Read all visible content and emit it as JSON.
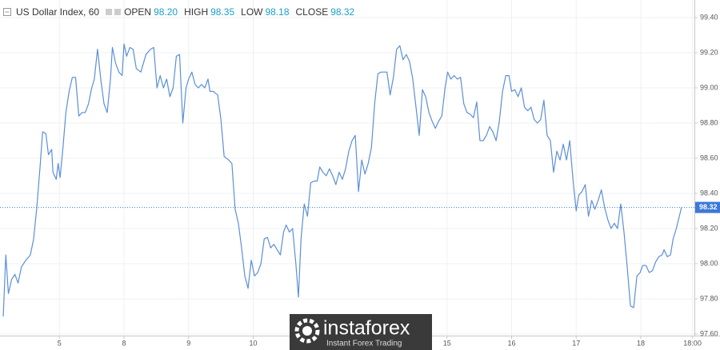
{
  "header": {
    "symbol": "US Dollar Index, 60",
    "fields": [
      {
        "label": "OPEN",
        "value": "98.20"
      },
      {
        "label": "HIGH",
        "value": "98.35"
      },
      {
        "label": "LOW",
        "value": "98.18"
      },
      {
        "label": "CLOSE",
        "value": "98.32"
      }
    ]
  },
  "chart_data": {
    "type": "line",
    "color": "#5b8fd8",
    "grid": true,
    "x": [
      -8.7,
      -8.3,
      -7.9,
      -7.4,
      -6.9,
      -6.4,
      -5.9,
      -5.2,
      -4.5,
      -4.0,
      -3.5,
      -3.0,
      -2.6,
      -2.1,
      -1.7,
      -1.2,
      -1.0,
      -0.5,
      -0.2,
      0.1,
      0.5,
      1.0,
      1.5,
      2.0,
      2.5,
      3.0,
      3.5,
      4.0,
      4.5,
      5.0,
      5.4,
      5.9,
      6.4,
      6.9,
      7.4,
      7.9,
      8.2,
      8.7,
      9.2,
      9.7,
      10.0,
      10.4,
      10.9,
      11.4,
      11.9,
      12.6,
      13.4,
      14.1,
      14.6,
      15.1,
      15.6,
      16.1,
      16.6,
      17.1,
      17.6,
      18.1,
      18.6,
      19.1,
      19.6,
      20.0,
      20.5,
      21.0,
      21.5,
      22.0,
      22.5,
      23.0,
      23.3,
      23.8,
      24.5,
      25.0,
      25.5,
      26.2,
      26.7,
      27.2,
      27.7,
      28.2,
      28.7,
      29.2,
      29.7,
      30.2,
      30.7,
      31.2,
      31.7,
      32.2,
      32.7,
      33.2,
      33.7,
      34.2,
      34.7,
      35.1,
      35.6,
      36.1,
      36.6,
      37.0,
      37.4,
      37.9,
      38.4,
      38.9,
      39.4,
      39.9,
      40.3,
      40.8,
      41.3,
      41.8,
      42.3,
      42.8,
      43.3,
      43.8,
      44.3,
      44.8,
      45.3,
      45.8,
      46.3,
      46.8,
      47.3,
      47.8,
      48.3,
      48.8,
      49.3,
      49.8,
      50.2,
      50.7,
      51.2,
      51.7,
      52.2,
      52.7,
      53.2,
      53.7,
      54.2,
      54.7,
      55.2,
      55.7,
      56.2,
      56.7,
      57.2,
      57.7,
      58.2,
      58.7,
      59.2,
      59.7,
      60.1,
      60.6,
      61.1,
      61.6,
      62.1,
      62.6,
      63.1,
      63.6,
      64.1,
      64.6,
      65.1,
      65.6,
      66.1,
      66.6,
      67.1,
      67.6,
      68.1,
      68.6,
      69.1,
      69.6,
      70.0,
      70.5,
      71.0,
      71.5,
      72.0,
      72.5,
      73.0,
      73.5,
      74.0,
      74.5,
      75.0,
      75.5,
      76.0,
      76.5,
      77.0,
      77.5,
      78.0,
      78.5,
      79.0,
      79.5,
      80.0,
      80.4,
      80.9,
      81.4,
      81.9,
      82.4,
      82.9,
      83.4,
      83.9,
      84.4,
      84.9,
      85.4,
      85.9,
      86.4,
      86.9,
      87.4,
      87.9,
      88.4,
      88.9,
      89.4,
      89.9,
      90.3,
      90.8,
      91.3,
      91.8,
      92.3,
      92.8,
      93.3,
      93.6,
      94.1,
      94.6,
      95.0,
      95.5,
      96.3
    ],
    "values": [
      97.7,
      98.05,
      97.83,
      97.91,
      97.94,
      97.89,
      97.98,
      98.02,
      98.05,
      98.14,
      98.32,
      98.55,
      98.75,
      98.74,
      98.62,
      98.65,
      98.52,
      98.48,
      98.57,
      98.49,
      98.64,
      98.86,
      98.98,
      99.06,
      99.06,
      98.84,
      98.86,
      98.86,
      98.91,
      99.0,
      99.05,
      99.22,
      99.05,
      98.91,
      98.86,
      99.05,
      99.23,
      99.14,
      99.09,
      99.07,
      99.25,
      99.18,
      99.23,
      99.22,
      99.11,
      99.09,
      99.19,
      99.22,
      99.23,
      99.0,
      99.07,
      99.0,
      99.05,
      98.95,
      99.0,
      99.18,
      99.19,
      98.8,
      99.0,
      99.05,
      99.09,
      99.02,
      99.0,
      99.02,
      99.0,
      99.05,
      98.98,
      98.98,
      98.96,
      98.82,
      98.61,
      98.59,
      98.57,
      98.31,
      98.23,
      98.09,
      97.93,
      97.86,
      98.02,
      97.93,
      97.95,
      98.0,
      98.14,
      98.15,
      98.09,
      98.11,
      98.08,
      98.05,
      98.18,
      98.22,
      98.18,
      98.2,
      98.0,
      97.81,
      98.14,
      98.34,
      98.27,
      98.46,
      98.47,
      98.47,
      98.55,
      98.52,
      98.5,
      98.54,
      98.5,
      98.45,
      98.52,
      98.48,
      98.54,
      98.64,
      98.7,
      98.73,
      98.41,
      98.59,
      98.51,
      98.57,
      98.66,
      98.91,
      99.08,
      99.09,
      99.09,
      99.09,
      98.96,
      99.06,
      99.22,
      99.24,
      99.16,
      99.19,
      99.15,
      99.05,
      98.89,
      98.73,
      98.99,
      98.95,
      98.86,
      98.81,
      98.77,
      98.81,
      98.84,
      99.0,
      99.09,
      99.05,
      99.07,
      99.05,
      99.06,
      98.91,
      98.86,
      98.85,
      98.83,
      98.92,
      98.7,
      98.7,
      98.73,
      98.78,
      98.75,
      98.7,
      98.81,
      98.98,
      99.07,
      99.07,
      98.98,
      98.99,
      98.95,
      99.0,
      98.89,
      98.87,
      98.89,
      98.82,
      98.8,
      98.82,
      98.93,
      98.73,
      98.7,
      98.52,
      98.64,
      98.59,
      98.68,
      98.59,
      98.7,
      98.48,
      98.3,
      98.39,
      98.41,
      98.45,
      98.27,
      98.36,
      98.31,
      98.36,
      98.42,
      98.32,
      98.25,
      98.2,
      98.23,
      98.2,
      98.34,
      98.18,
      97.98,
      97.76,
      97.75,
      97.93,
      97.95,
      97.99,
      97.99,
      97.95,
      97.96,
      98.01,
      98.04,
      98.05,
      98.08,
      98.04,
      98.05,
      98.14,
      98.2,
      98.32
    ],
    "xlim": [
      -9.2,
      98.3
    ],
    "xticks": [
      {
        "value": 0,
        "label": "5"
      },
      {
        "value": 10,
        "label": "8"
      },
      {
        "value": 20,
        "label": "9"
      },
      {
        "value": 30,
        "label": "10"
      },
      {
        "value": 60,
        "label": "15"
      },
      {
        "value": 70,
        "label": "16"
      },
      {
        "value": 80,
        "label": "17"
      },
      {
        "value": 90,
        "label": "18"
      },
      {
        "value": 98,
        "label": "18:00"
      }
    ],
    "ylim": [
      97.6,
      99.5
    ],
    "yticks": [
      {
        "value": 97.6,
        "label": "97.60"
      },
      {
        "value": 97.8,
        "label": "97.80"
      },
      {
        "value": 98.0,
        "label": "98.00"
      },
      {
        "value": 98.2,
        "label": "98.20"
      },
      {
        "value": 98.4,
        "label": "98.40"
      },
      {
        "value": 98.6,
        "label": "98.60"
      },
      {
        "value": 98.8,
        "label": "98.80"
      },
      {
        "value": 99.0,
        "label": "99.00"
      },
      {
        "value": 99.2,
        "label": "99.20"
      },
      {
        "value": 99.4,
        "label": "99.40"
      }
    ],
    "last_price": {
      "value": 98.32,
      "label": "98.32"
    }
  },
  "watermark": {
    "brand": "instaforex",
    "tagline": "Instant Forex Trading"
  }
}
